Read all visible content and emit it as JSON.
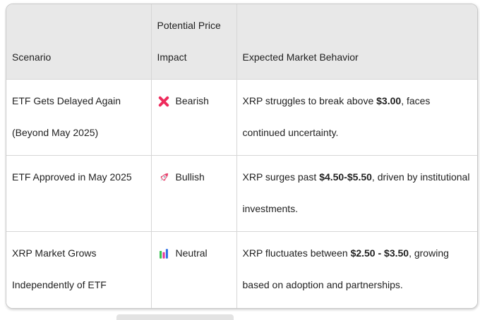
{
  "page": {
    "background": "#ffffff"
  },
  "table": {
    "style": {
      "header_bg": "#e8e8e8",
      "body_bg": "#ffffff",
      "border_color": "#d6d6d6",
      "outer_border_color": "#c9c9c9",
      "text_color": "#1f1f1f",
      "bearish_icon_color": "#ee2b5c",
      "bullish_icon_color": "#e8456e",
      "neutral_icon_colors": [
        "#35c24d",
        "#e3359c",
        "#2f6fe4"
      ]
    },
    "columns": [
      {
        "label": "Scenario"
      },
      {
        "label": "Potential Price Impact"
      },
      {
        "label": "Expected Market Behavior"
      }
    ],
    "rows": [
      {
        "scenario": "ETF Gets Delayed Again (Beyond May 2025)",
        "impact": {
          "icon": "cross-mark-icon",
          "label": "Bearish"
        },
        "behavior": [
          {
            "text": "XRP struggles to break above "
          },
          {
            "text": "$3.00",
            "bold": true
          },
          {
            "text": ", faces continued uncertainty."
          }
        ]
      },
      {
        "scenario": "ETF Approved in May 2025",
        "impact": {
          "icon": "rocket-icon",
          "label": "Bullish"
        },
        "behavior": [
          {
            "text": "XRP surges past "
          },
          {
            "text": "$4.50-$5.50",
            "bold": true
          },
          {
            "text": ", driven by institutional investments."
          }
        ]
      },
      {
        "scenario": "XRP Market Grows Independently of ETF",
        "impact": {
          "icon": "bar-chart-icon",
          "label": "Neutral"
        },
        "behavior": [
          {
            "text": "XRP fluctuates between "
          },
          {
            "text": "$2.50 - $3.50",
            "bold": true
          },
          {
            "text": ", growing based on adoption and partnerships."
          }
        ]
      }
    ]
  }
}
